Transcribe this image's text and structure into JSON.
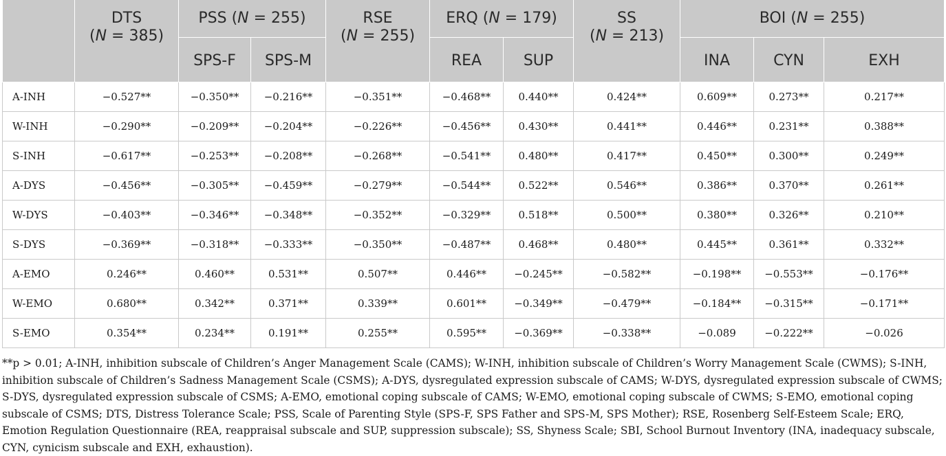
{
  "header": {
    "dts": "DTS",
    "dts_n": "N",
    "dts_n_val": " = 385)",
    "pss": "PSS (",
    "pss_n": "N",
    "pss_n_val": " = 255)",
    "rse": "RSE",
    "rse_n": "N",
    "rse_n_val": " = 255)",
    "erq": "ERQ (",
    "erq_n": "N",
    "erq_n_val": " = 179)",
    "ss": "SS",
    "ss_n": "N",
    "ss_n_val": " = 213)",
    "boi": "BOI (",
    "boi_n": "N",
    "boi_n_val": " = 255)",
    "open_paren": "(",
    "sub": [
      "SPS-F",
      "SPS-M",
      "REA",
      "SUP",
      "INA",
      "CYN",
      "EXH"
    ]
  },
  "rows": [
    {
      "label": "A-INH",
      "values": [
        "−0.527**",
        "−0.350**",
        "−0.216**",
        "−0.351**",
        "−0.468**",
        "0.440**",
        "0.424**",
        "0.609**",
        "0.273**",
        "0.217**"
      ]
    },
    {
      "label": "W-INH",
      "values": [
        "−0.290**",
        "−0.209**",
        "−0.204**",
        "−0.226**",
        "−0.456**",
        "0.430**",
        "0.441**",
        "0.446**",
        "0.231**",
        "0.388**"
      ]
    },
    {
      "label": "S-INH",
      "values": [
        "−0.617**",
        "−0.253**",
        "−0.208**",
        "−0.268**",
        "−0.541**",
        "0.480**",
        "0.417**",
        "0.450**",
        "0.300**",
        "0.249**"
      ]
    },
    {
      "label": "A-DYS",
      "values": [
        "−0.456**",
        "−0.305**",
        "−0.459**",
        "−0.279**",
        "−0.544**",
        "0.522**",
        "0.546**",
        "0.386**",
        "0.370**",
        "0.261**"
      ]
    },
    {
      "label": "W-DYS",
      "values": [
        "−0.403**",
        "−0.346**",
        "−0.348**",
        "−0.352**",
        "−0.329**",
        "0.518**",
        "0.500**",
        "0.380**",
        "0.326**",
        "0.210**"
      ]
    },
    {
      "label": "S-DYS",
      "values": [
        "−0.369**",
        "−0.318**",
        "−0.333**",
        "−0.350**",
        "−0.487**",
        "0.468**",
        "0.480**",
        "0.445**",
        "0.361**",
        "0.332**"
      ]
    },
    {
      "label": "A-EMO",
      "values": [
        "0.246**",
        "0.460**",
        "0.531**",
        "0.507**",
        "0.446**",
        "−0.245**",
        "−0.582**",
        "−0.198**",
        "−0.553**",
        "−0.176**"
      ]
    },
    {
      "label": "W-EMO",
      "values": [
        "0.680**",
        "0.342**",
        "0.371**",
        "0.339**",
        "0.601**",
        "−0.349**",
        "−0.479**",
        "−0.184**",
        "−0.315**",
        "−0.171**"
      ]
    },
    {
      "label": "S-EMO",
      "values": [
        "0.354**",
        "0.234**",
        "0.191**",
        "0.255**",
        "0.595**",
        "−0.369**",
        "−0.338**",
        "−0.089",
        "−0.222**",
        "−0.026"
      ]
    }
  ],
  "note": "**p > 0.01; A-INH, inhibition subscale of Children’s Anger Management Scale (CAMS); W-INH, inhibition subscale of Children’s Worry Management Scale (CWMS); S-INH, inhibition subscale of Children’s Sadness Management Scale (CSMS); A-DYS, dysregulated expression subscale of CAMS; W-DYS, dysregulated expression subscale of CWMS; S-DYS, dysregulated expression subscale of CSMS; A-EMO, emotional coping subscale of CAMS; W-EMO, emotional coping subscale of CWMS; S-EMO, emotional coping subscale of CSMS; DTS, Distress Tolerance Scale; PSS, Scale of Parenting Style (SPS-F, SPS Father and SPS-M, SPS Mother); RSE, Rosenberg Self-Esteem Scale; ERQ, Emotion Regulation Questionnaire (REA, reappraisal subscale and SUP, suppression subscale); SS, Shyness Scale; SBI, School Burnout Inventory (INA, inadequacy subscale, CYN, cynicism subscale and EXH, exhaustion)."
}
